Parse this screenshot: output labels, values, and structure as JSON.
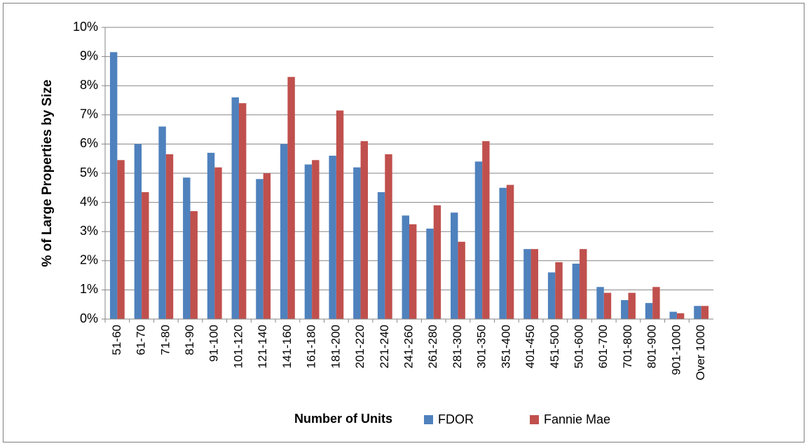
{
  "chart_data": {
    "type": "bar",
    "y_label": "% of Large Properties by Size",
    "x_label": "Number of Units",
    "categories": [
      "51-60",
      "61-70",
      "71-80",
      "81-90",
      "91-100",
      "101-120",
      "121-140",
      "141-160",
      "161-180",
      "181-200",
      "201-220",
      "221-240",
      "241-260",
      "261-280",
      "281-300",
      "301-350",
      "351-400",
      "401-450",
      "451-500",
      "501-600",
      "601-700",
      "701-800",
      "801-900",
      "901-1000",
      "Over 1000"
    ],
    "series": [
      {
        "name": "FDOR",
        "color": "#4f81bd",
        "values": [
          9.15,
          6.0,
          6.6,
          4.85,
          5.7,
          7.6,
          4.8,
          6.0,
          5.3,
          5.6,
          5.2,
          4.35,
          3.55,
          3.1,
          3.65,
          5.4,
          4.5,
          2.4,
          1.6,
          1.9,
          1.1,
          0.65,
          0.55,
          0.25,
          0.45
        ]
      },
      {
        "name": "Fannie Mae",
        "color": "#c0504d",
        "values": [
          5.45,
          4.35,
          5.65,
          3.7,
          5.2,
          7.4,
          5.0,
          8.3,
          5.45,
          7.15,
          6.1,
          5.65,
          3.25,
          3.9,
          2.65,
          6.1,
          4.6,
          2.4,
          1.95,
          2.4,
          0.9,
          0.9,
          1.1,
          0.2,
          0.45
        ]
      }
    ],
    "ylim": [
      0,
      10
    ],
    "yticks": [
      {
        "value": 0,
        "label": "0%"
      },
      {
        "value": 1,
        "label": "1%"
      },
      {
        "value": 2,
        "label": "2%"
      },
      {
        "value": 3,
        "label": "3%"
      },
      {
        "value": 4,
        "label": "4%"
      },
      {
        "value": 5,
        "label": "5%"
      },
      {
        "value": 6,
        "label": "6%"
      },
      {
        "value": 7,
        "label": "7%"
      },
      {
        "value": 8,
        "label": "8%"
      },
      {
        "value": 9,
        "label": "9%"
      },
      {
        "value": 10,
        "label": "10%"
      }
    ],
    "grid": true,
    "legend": "bottom"
  }
}
